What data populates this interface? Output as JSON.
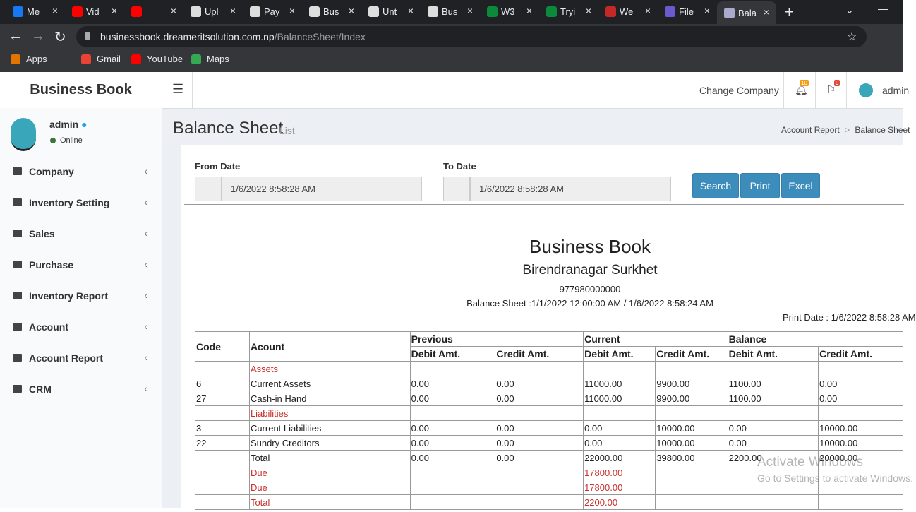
{
  "browser": {
    "tabs": [
      "Me",
      "Vid",
      "Upl",
      "Pay",
      "Bus",
      "Unt",
      "Bus",
      "W3",
      "Tryi",
      "We",
      "File",
      "Bala"
    ],
    "url": {
      "host": "businessbook.dreameritsolution.com.np",
      "path": "/BalanceSheet/Index"
    },
    "bookmarks": [
      "Apps",
      "Gmail",
      "YouTube",
      "Maps"
    ]
  },
  "header": {
    "brand": "Business Book",
    "change_company": "Change Company",
    "notifications": "10",
    "flags": "9",
    "user": "admin"
  },
  "sidebar": {
    "user": "admin",
    "status": "Online",
    "menu": [
      "Company",
      "Inventory Setting",
      "Sales",
      "Purchase",
      "Inventory Report",
      "Account",
      "Account Report",
      "CRM"
    ]
  },
  "page": {
    "title": "Balance Sheet",
    "subtitle": "List",
    "breadcrumb": [
      "Account Report",
      "Balance Sheet"
    ]
  },
  "form": {
    "from_label": "From Date",
    "from_value": "1/6/2022 8:58:28 AM",
    "to_label": "To Date",
    "to_value": "1/6/2022 8:58:28 AM",
    "buttons": [
      "Search",
      "Print",
      "Excel"
    ]
  },
  "report": {
    "company": "Business Book",
    "address": "Birendranagar Surkhet",
    "phone": "977980000000",
    "period": "Balance Sheet :1/1/2022 12:00:00 AM / 1/6/2022 8:58:24 AM",
    "print_date": "Print Date : 1/6/2022 8:58:28 AM"
  },
  "table": {
    "headers": [
      "Code",
      "Acount"
    ],
    "groups": [
      "Previous",
      "Current",
      "Balance"
    ],
    "subheaders": [
      "Debit Amt.",
      "Credit Amt.",
      "Debit Amt.",
      "Credit Amt.",
      "Debit Amt.",
      "Credit Amt."
    ],
    "rows": [
      {
        "cells": [
          null,
          "Assets",
          null,
          null,
          null,
          null,
          null,
          null
        ],
        "red": true
      },
      {
        "cells": [
          "6",
          "Current Assets",
          "0.00",
          "0.00",
          "11000.00",
          "9900.00",
          "1100.00",
          "0.00"
        ]
      },
      {
        "cells": [
          "27",
          "Cash-in Hand",
          "0.00",
          "0.00",
          "11000.00",
          "9900.00",
          "1100.00",
          "0.00"
        ]
      },
      {
        "cells": [
          null,
          "Liabilities",
          null,
          null,
          null,
          null,
          null,
          null
        ],
        "red": true
      },
      {
        "cells": [
          "3",
          "Current Liabilities",
          "0.00",
          "0.00",
          "0.00",
          "10000.00",
          "0.00",
          "10000.00"
        ]
      },
      {
        "cells": [
          "22",
          "Sundry Creditors",
          "0.00",
          "0.00",
          "0.00",
          "10000.00",
          "0.00",
          "10000.00"
        ]
      },
      {
        "cells": [
          null,
          "Total",
          "0.00",
          "0.00",
          "22000.00",
          "39800.00",
          "2200.00",
          "20000.00"
        ]
      },
      {
        "cells": [
          null,
          "Due",
          null,
          null,
          "17800.00",
          null,
          null,
          null
        ],
        "red": true
      },
      {
        "cells": [
          null,
          "Due",
          null,
          null,
          "17800.00",
          null,
          null,
          null
        ],
        "red": true
      },
      {
        "cells": [
          null,
          "Total",
          null,
          null,
          "2200.00",
          null,
          null,
          null
        ],
        "red": true
      }
    ]
  },
  "watermark": {
    "title": "Activate Windows",
    "text": "Go to Settings to activate Windows."
  }
}
